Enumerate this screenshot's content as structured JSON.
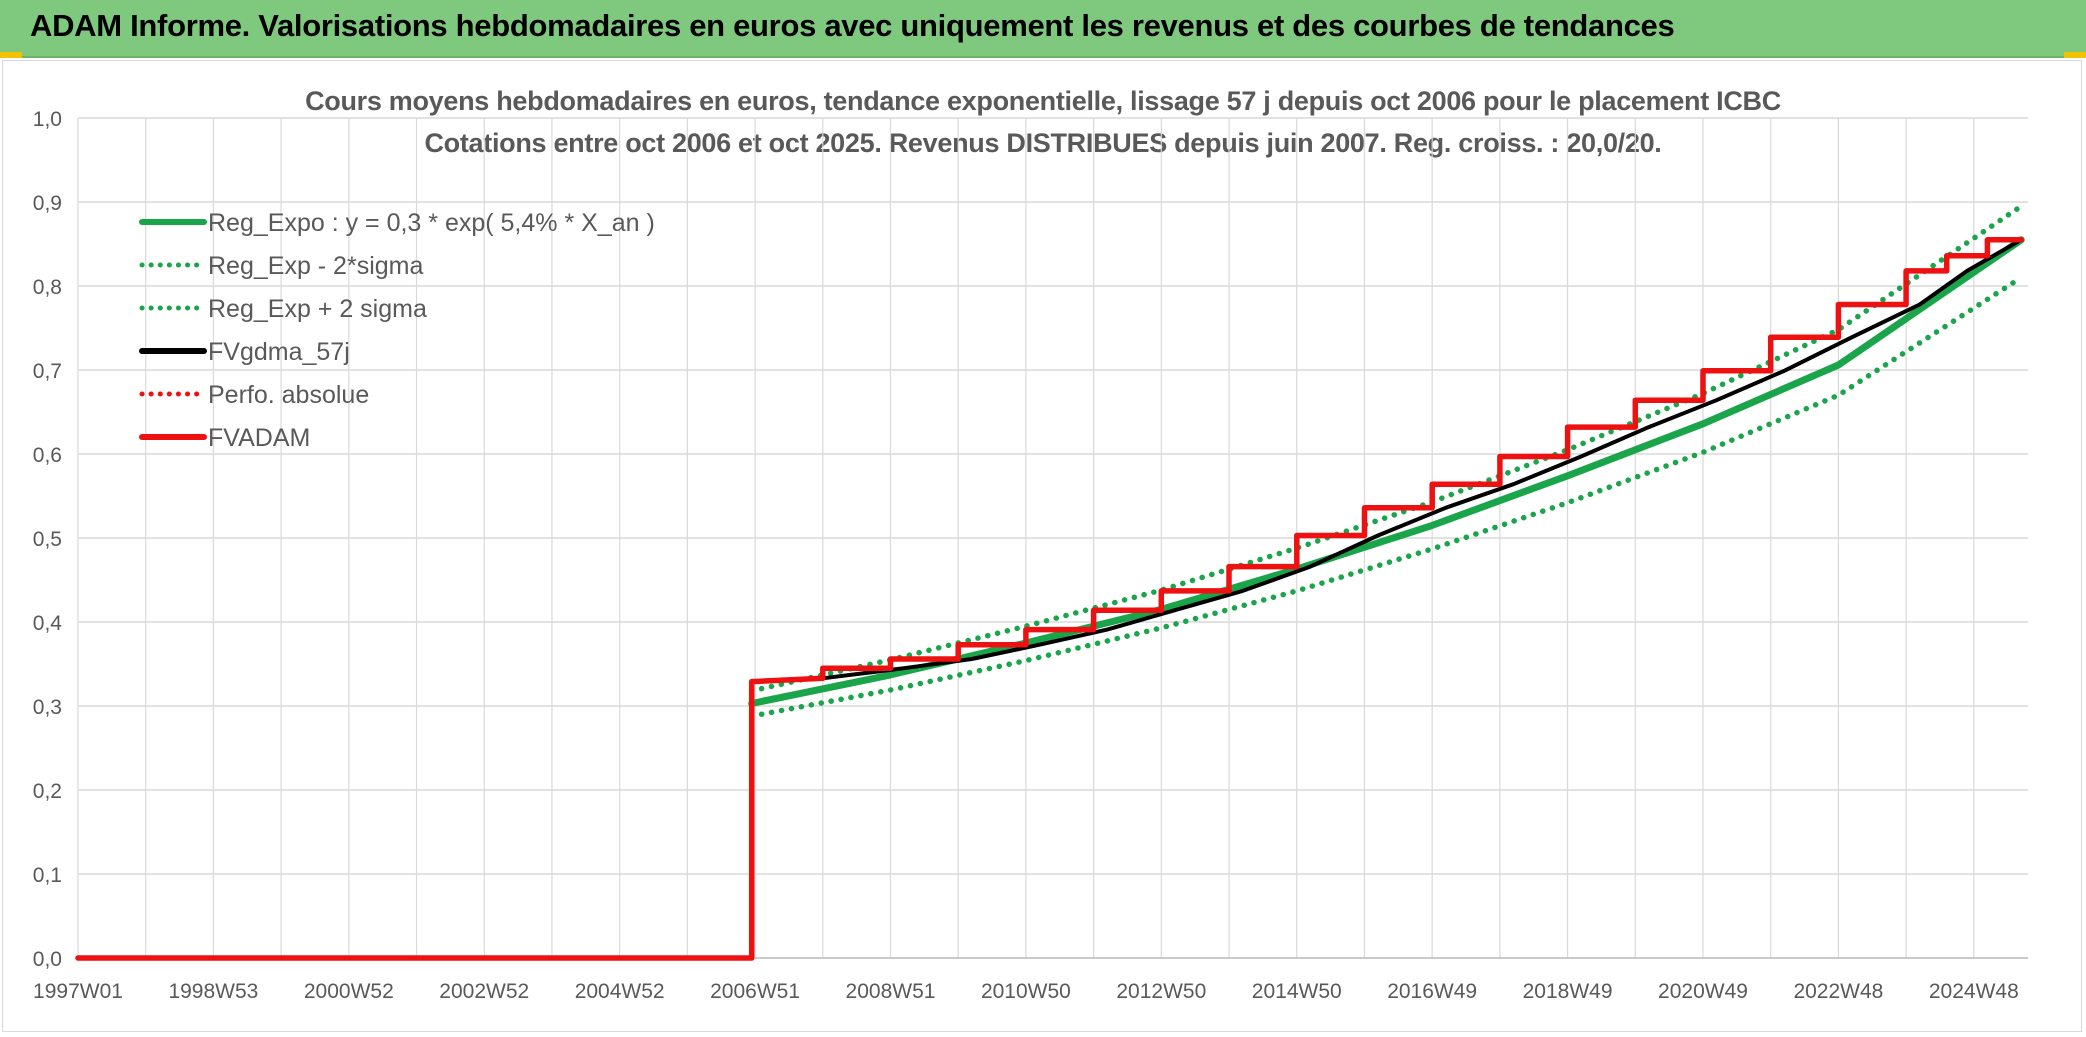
{
  "header": {
    "title": "ADAM Informe. Valorisations hebdomadaires en euros avec uniquement les revenus et des courbes de tendances"
  },
  "colors": {
    "header_bg": "#7fc97f",
    "trend": "#1aa54a",
    "smoothed": "#000000",
    "adam": "#ee1111",
    "grid": "#d9d9d9",
    "text": "#595959"
  },
  "chart_data": {
    "type": "line",
    "title": "Cours moyens hebdomadaires en euros, tendance exponentielle, lissage 57 j depuis oct 2006 pour le placement ICBC",
    "subtitle": "Cotations entre oct 2006 et oct 2025. Revenus DISTRIBUES depuis juin 2007. Reg. croiss. : 20,0/20.",
    "x_tick_labels": [
      "1997W01",
      "1998W53",
      "2000W52",
      "2002W52",
      "2004W52",
      "2006W51",
      "2008W51",
      "2010W50",
      "2012W50",
      "2014W50",
      "2016W49",
      "2018W49",
      "2020W49",
      "2022W48",
      "2024W48"
    ],
    "x_tick_years": [
      1997.0,
      1999.0,
      2001.0,
      2003.0,
      2005.0,
      2007.0,
      2009.0,
      2011.0,
      2013.0,
      2015.0,
      2017.0,
      2019.0,
      2021.0,
      2023.0,
      2025.0
    ],
    "xlim": [
      1997.0,
      2025.8
    ],
    "y_tick_labels": [
      "0,0",
      "0,1",
      "0,2",
      "0,3",
      "0,4",
      "0,5",
      "0,6",
      "0,7",
      "0,8",
      "0,9",
      "1,0"
    ],
    "ylim": [
      0,
      1.0
    ],
    "grid": true,
    "legend_position": "top-left",
    "series": [
      {
        "name": "Reg_Expo : y = 0,3 * exp( 5,4% *  X_an )",
        "style": "solid",
        "color": "#1aa54a",
        "x": [
          2006.95,
          2009,
          2011,
          2013,
          2015,
          2017,
          2019,
          2021,
          2023,
          2025.7
        ],
        "y": [
          0.303,
          0.337,
          0.375,
          0.415,
          0.463,
          0.515,
          0.574,
          0.636,
          0.706,
          0.855
        ]
      },
      {
        "name": "Reg_Exp - 2*sigma",
        "style": "dotted",
        "color": "#1aa54a",
        "x": [
          2006.95,
          2009,
          2011,
          2013,
          2015,
          2017,
          2019,
          2021,
          2023,
          2025.7
        ],
        "y": [
          0.288,
          0.319,
          0.354,
          0.393,
          0.437,
          0.487,
          0.542,
          0.602,
          0.67,
          0.81
        ]
      },
      {
        "name": "Reg_Exp + 2 sigma",
        "style": "dotted",
        "color": "#1aa54a",
        "x": [
          2006.95,
          2009,
          2011,
          2013,
          2015,
          2017,
          2019,
          2021,
          2023,
          2025.7
        ],
        "y": [
          0.318,
          0.355,
          0.395,
          0.438,
          0.488,
          0.543,
          0.605,
          0.672,
          0.748,
          0.895
        ]
      },
      {
        "name": "FVgdma_57j",
        "style": "solid",
        "color": "#000000",
        "x": [
          2006.95,
          2008.0,
          2009.2,
          2010.2,
          2011.2,
          2012.2,
          2013.2,
          2014.2,
          2015.2,
          2016.2,
          2017.2,
          2018.2,
          2019.2,
          2020.2,
          2021.2,
          2022.2,
          2023.2,
          2024.2,
          2024.9,
          2025.7
        ],
        "y": [
          0.329,
          0.333,
          0.345,
          0.356,
          0.373,
          0.391,
          0.414,
          0.437,
          0.466,
          0.503,
          0.536,
          0.564,
          0.597,
          0.632,
          0.664,
          0.699,
          0.739,
          0.778,
          0.818,
          0.855
        ]
      },
      {
        "name": "Perfo. absolue",
        "style": "dotted",
        "color": "#ee1111",
        "x": [],
        "y": []
      },
      {
        "name": "FVADAM",
        "style": "solid",
        "color": "#ee1111",
        "x": [
          1997.0,
          2006.95,
          2006.95,
          2008.0,
          2008.0,
          2009.0,
          2009.0,
          2010.0,
          2010.0,
          2011.0,
          2011.0,
          2012.0,
          2012.0,
          2013.0,
          2013.0,
          2014.0,
          2014.0,
          2015.0,
          2015.0,
          2016.0,
          2016.0,
          2017.0,
          2017.0,
          2018.0,
          2018.0,
          2019.0,
          2019.0,
          2020.0,
          2020.0,
          2021.0,
          2021.0,
          2022.0,
          2022.0,
          2023.0,
          2023.0,
          2024.0,
          2024.0,
          2024.6,
          2024.6,
          2025.2,
          2025.2,
          2025.7
        ],
        "y": [
          0,
          0,
          0.329,
          0.333,
          0.345,
          0.345,
          0.356,
          0.356,
          0.373,
          0.373,
          0.391,
          0.391,
          0.414,
          0.414,
          0.437,
          0.437,
          0.466,
          0.466,
          0.503,
          0.503,
          0.536,
          0.536,
          0.564,
          0.564,
          0.597,
          0.597,
          0.632,
          0.632,
          0.664,
          0.664,
          0.699,
          0.699,
          0.739,
          0.739,
          0.778,
          0.778,
          0.818,
          0.818,
          0.836,
          0.836,
          0.855,
          0.855
        ]
      }
    ]
  }
}
